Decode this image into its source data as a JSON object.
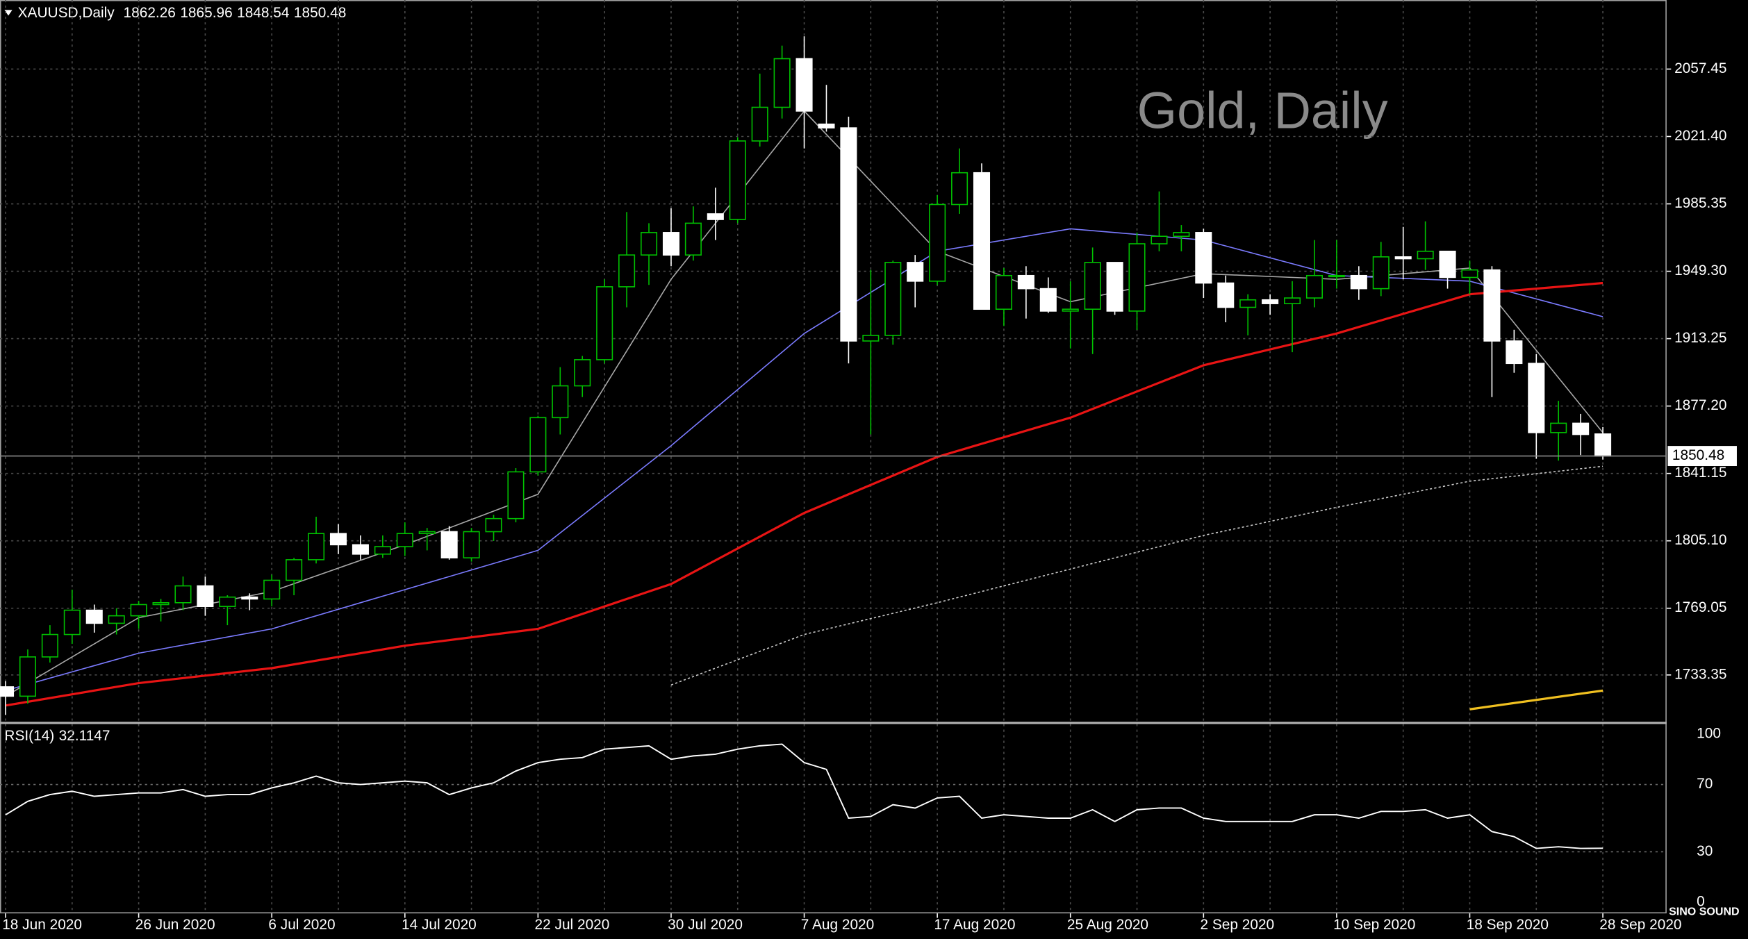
{
  "chart_data": [
    {
      "type": "candlestick",
      "title": "Gold, Daily",
      "symbol": "XAUUSD,Daily",
      "logo": "SINO SOUND",
      "categories": [
        "18 Jun 2020",
        null,
        null,
        null,
        null,
        null,
        "26 Jun 2020",
        null,
        null,
        null,
        null,
        null,
        "6 Jul 2020",
        null,
        null,
        null,
        null,
        null,
        "14 Jul 2020",
        null,
        null,
        null,
        null,
        null,
        "22 Jul 2020",
        null,
        null,
        null,
        null,
        null,
        "30 Jul 2020",
        null,
        null,
        null,
        null,
        null,
        "7 Aug 2020",
        null,
        null,
        null,
        null,
        null,
        "17 Aug 2020",
        null,
        null,
        null,
        null,
        null,
        "25 Aug 2020",
        null,
        null,
        null,
        null,
        null,
        "2 Sep 2020",
        null,
        null,
        null,
        null,
        null,
        "10 Sep 2020",
        null,
        null,
        null,
        null,
        null,
        "18 Sep 2020",
        null,
        null,
        null,
        null,
        null,
        "28 Sep 2020"
      ],
      "open": [
        1727,
        1722,
        1743,
        1755,
        1768,
        1761,
        1765,
        1771,
        1772,
        1781,
        1770,
        1775,
        1774,
        1784,
        1795,
        1809,
        1803,
        1798,
        1802,
        1809,
        1810,
        1796,
        1810,
        1817,
        1842,
        1871,
        1888,
        1902,
        1941,
        1958,
        1970,
        1958,
        1980,
        1977,
        2019,
        2037,
        2063,
        2028,
        2026,
        1912,
        1915,
        1954,
        1944,
        1985,
        2002,
        1929,
        1947,
        1940,
        1928,
        1929,
        1954,
        1928,
        1964,
        1968,
        1970,
        1943,
        1930,
        1934,
        1932,
        1935,
        1947,
        1947,
        1940,
        1957,
        1956,
        1960,
        1946,
        1950,
        1912,
        1900,
        1863,
        1868,
        1862.26
      ],
      "high": [
        1730,
        1747,
        1760,
        1779,
        1771,
        1769,
        1773,
        1774,
        1786,
        1786,
        1776,
        1777,
        1787,
        1796,
        1818,
        1814,
        1808,
        1808,
        1815,
        1812,
        1813,
        1812,
        1819,
        1844,
        1872,
        1898,
        1904,
        1945,
        1981,
        1975,
        1983,
        1984,
        1994,
        2021,
        2055,
        2070,
        2075,
        2049,
        2032,
        1950,
        1955,
        1958,
        1990,
        2015,
        2007,
        1951,
        1952,
        1946,
        1944,
        1962,
        1954,
        1970,
        1992,
        1974,
        1972,
        1947,
        1937,
        1937,
        1944,
        1966,
        1966,
        1952,
        1965,
        1973,
        1976,
        1960,
        1955,
        1952,
        1918,
        1905,
        1880,
        1873,
        1865.96
      ],
      "low": [
        1712,
        1718,
        1740,
        1750,
        1756,
        1755,
        1758,
        1762,
        1768,
        1765,
        1760,
        1768,
        1770,
        1776,
        1793,
        1798,
        1795,
        1796,
        1797,
        1800,
        1795,
        1794,
        1805,
        1815,
        1840,
        1862,
        1882,
        1900,
        1930,
        1942,
        1952,
        1955,
        1966,
        1975,
        2016,
        2031,
        2015,
        2024,
        1900,
        1862,
        1910,
        1930,
        1942,
        1980,
        1930,
        1920,
        1924,
        1927,
        1908,
        1905,
        1926,
        1918,
        1960,
        1960,
        1935,
        1922,
        1915,
        1926,
        1906,
        1930,
        1940,
        1934,
        1936,
        1945,
        1950,
        1940,
        1937,
        1882,
        1895,
        1849,
        1848,
        1851,
        1848.54
      ],
      "close": [
        1722,
        1743,
        1755,
        1768,
        1761,
        1765,
        1771,
        1772,
        1781,
        1770,
        1775,
        1774,
        1784,
        1795,
        1809,
        1803,
        1798,
        1802,
        1809,
        1810,
        1796,
        1810,
        1817,
        1842,
        1871,
        1888,
        1902,
        1941,
        1958,
        1970,
        1958,
        1975,
        1977,
        2019,
        2037,
        2063,
        2035,
        2026,
        1912,
        1915,
        1954,
        1944,
        1985,
        2002,
        1929,
        1947,
        1940,
        1928,
        1929,
        1954,
        1928,
        1964,
        1968,
        1970,
        1943,
        1930,
        1934,
        1932,
        1935,
        1947,
        1947,
        1940,
        1957,
        1956,
        1960,
        1946,
        1950,
        1912,
        1900,
        1863,
        1868,
        1862,
        1850.48
      ],
      "up_color": "#00c000",
      "down_color": "#ffffff",
      "ylim": [
        1708.3,
        2094.4
      ],
      "yticks": [
        2057.45,
        {
          "value": 2021.4,
          "label": "2021.40"
        },
        1985.35,
        {
          "value": 1949.3,
          "label": "1949.30"
        },
        1913.25,
        {
          "value": 1877.2,
          "label": "1877.20"
        },
        1841.15,
        {
          "value": 1805.1,
          "label": "1805.10"
        },
        1769.05,
        1733.35
      ],
      "grid": true,
      "series": [
        {
          "color": "#a8a8a8",
          "x": [
            "18 Jun 2020",
            "26 Jun 2020",
            "6 Jul 2020",
            "14 Jul 2020",
            "22 Jul 2020",
            "30 Jul 2020",
            "7 Aug 2020",
            "17 Aug 2020",
            "25 Aug 2020",
            "2 Sep 2020",
            "10 Sep 2020",
            "18 Sep 2020",
            "28 Sep 2020"
          ],
          "values": [
            1722,
            1764,
            1778,
            1803,
            1830,
            1945,
            2035,
            1960,
            1933,
            1948,
            1945,
            1951,
            1863
          ]
        },
        {
          "color": "#7b7bff",
          "x": [
            "18 Jun 2020",
            "26 Jun 2020",
            "6 Jul 2020",
            "14 Jul 2020",
            "22 Jul 2020",
            "30 Jul 2020",
            "7 Aug 2020",
            "17 Aug 2020",
            "25 Aug 2020",
            "2 Sep 2020",
            "10 Sep 2020",
            "18 Sep 2020",
            "28 Sep 2020"
          ],
          "values": [
            1725,
            1745,
            1758,
            1779,
            1800,
            1856,
            1916,
            1960,
            1972,
            1966,
            1947,
            1944,
            1925
          ]
        },
        {
          "color": "#e81414",
          "x": [
            "18 Jun 2020",
            "26 Jun 2020",
            "6 Jul 2020",
            "14 Jul 2020",
            "22 Jul 2020",
            "30 Jul 2020",
            "7 Aug 2020",
            "17 Aug 2020",
            "25 Aug 2020",
            "2 Sep 2020",
            "10 Sep 2020",
            "18 Sep 2020",
            "28 Sep 2020"
          ],
          "values": [
            1717,
            1729,
            1737,
            1749,
            1758,
            1782,
            1820,
            1850,
            1871,
            1899,
            1916,
            1937,
            1943
          ],
          "width": 2
        },
        {
          "color": "#c8c8c8",
          "dotted": true,
          "x": [
            "30 Jul 2020",
            "7 Aug 2020",
            "17 Aug 2020",
            "25 Aug 2020",
            "2 Sep 2020",
            "10 Sep 2020",
            "18 Sep 2020",
            "28 Sep 2020"
          ],
          "values": [
            1728,
            1755,
            1772,
            1790,
            1808,
            1823,
            1837,
            1845
          ]
        },
        {
          "color": "#f0c020",
          "x": [
            "18 Sep 2020",
            "28 Sep 2020"
          ],
          "values": [
            1715,
            1725
          ],
          "width": 2
        }
      ]
    },
    {
      "type": "line",
      "title": "RSI(14)",
      "color": "#ffffff",
      "ylim": [
        0,
        100
      ],
      "yticks": [
        100,
        70,
        30,
        0
      ],
      "values": [
        52,
        60,
        64,
        66,
        63,
        64,
        65,
        65,
        67,
        63,
        64,
        64,
        68,
        71,
        75,
        71,
        70,
        71,
        72,
        71,
        64,
        68,
        71,
        78,
        83,
        85,
        86,
        91,
        92,
        93,
        85,
        87,
        88,
        91,
        93,
        94,
        83,
        79,
        50,
        51,
        58,
        56,
        62,
        63,
        50,
        52,
        51,
        50,
        50,
        55,
        48,
        55,
        56,
        56,
        50,
        48,
        48,
        48,
        48,
        52,
        52,
        50,
        54,
        54,
        55,
        50,
        52,
        42,
        39,
        32,
        33,
        32,
        32.1147
      ]
    }
  ]
}
